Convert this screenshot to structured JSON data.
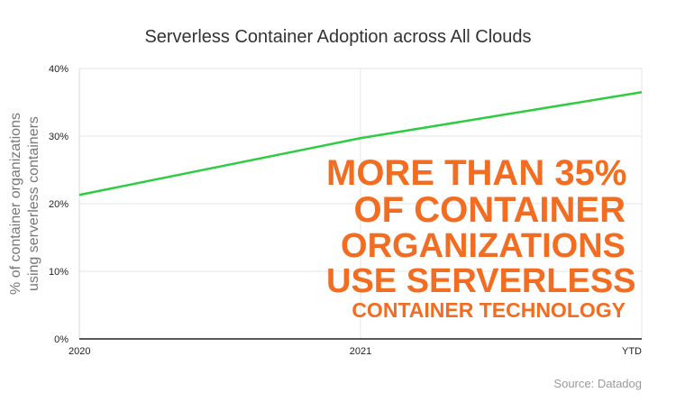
{
  "colors": {
    "line": "#2ecc40",
    "callout": "#f26d21",
    "grid": "#e6e6e6"
  },
  "callout": {
    "lines": [
      "MORE THAN 35%",
      "OF CONTAINER",
      "ORGANIZATIONS",
      "USE SERVERLESS",
      "CONTAINER TECHNOLOGY"
    ]
  },
  "source": "Source: Datadog",
  "chart_data": {
    "type": "line",
    "title": "Serverless Container Adoption across All Clouds",
    "ylabel_lines": [
      "% of container organizations",
      "using serverless containers"
    ],
    "xlabel": "",
    "categories": [
      "2020",
      "2021",
      "YTD"
    ],
    "series": [
      {
        "values": [
          21.3,
          29.7,
          36.5
        ]
      }
    ],
    "ylim": [
      0,
      40
    ],
    "y_ticks": [
      0,
      10,
      20,
      30,
      40
    ],
    "y_tick_labels": [
      "0%",
      "10%",
      "20%",
      "30%",
      "40%"
    ],
    "grid": true,
    "legend": "none"
  }
}
